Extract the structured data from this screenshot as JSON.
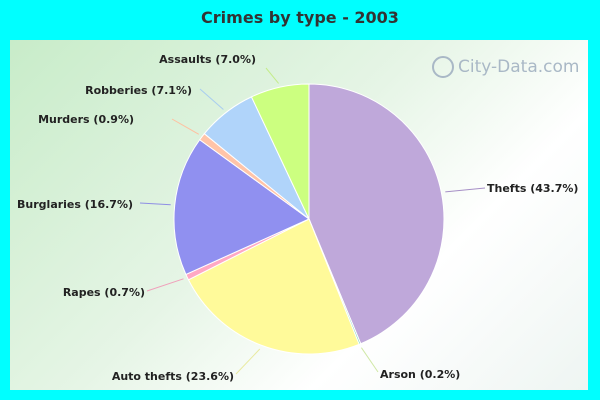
{
  "chart_data": {
    "type": "pie",
    "title": "Crimes by type - 2003",
    "slices": [
      {
        "label": "Thefts (43.7%)",
        "value": 43.7,
        "color": "#bfa8da",
        "lineColor": "#a68fc6"
      },
      {
        "label": "Arson (0.2%)",
        "value": 0.2,
        "color": "#7ed6c0",
        "lineColor": "#d0e8a6"
      },
      {
        "label": "Auto thefts (23.6%)",
        "value": 23.6,
        "color": "#fffa9a",
        "lineColor": "#e9eaa0"
      },
      {
        "label": "Rapes (0.7%)",
        "value": 0.7,
        "color": "#ffa8c4",
        "lineColor": "#f0a0bb"
      },
      {
        "label": "Burglaries (16.7%)",
        "value": 16.7,
        "color": "#9090f0",
        "lineColor": "#8e8ee4"
      },
      {
        "label": "Murders (0.9%)",
        "value": 0.9,
        "color": "#ffc4a8",
        "lineColor": "#ffc0a0"
      },
      {
        "label": "Robberies (7.1%)",
        "value": 7.1,
        "color": "#b0d4fa",
        "lineColor": "#a8cdf0"
      },
      {
        "label": "Assaults (7.0%)",
        "value": 7.0,
        "color": "#ccff80",
        "lineColor": "#c4ec8a"
      }
    ]
  },
  "watermark": "City-Data.com"
}
